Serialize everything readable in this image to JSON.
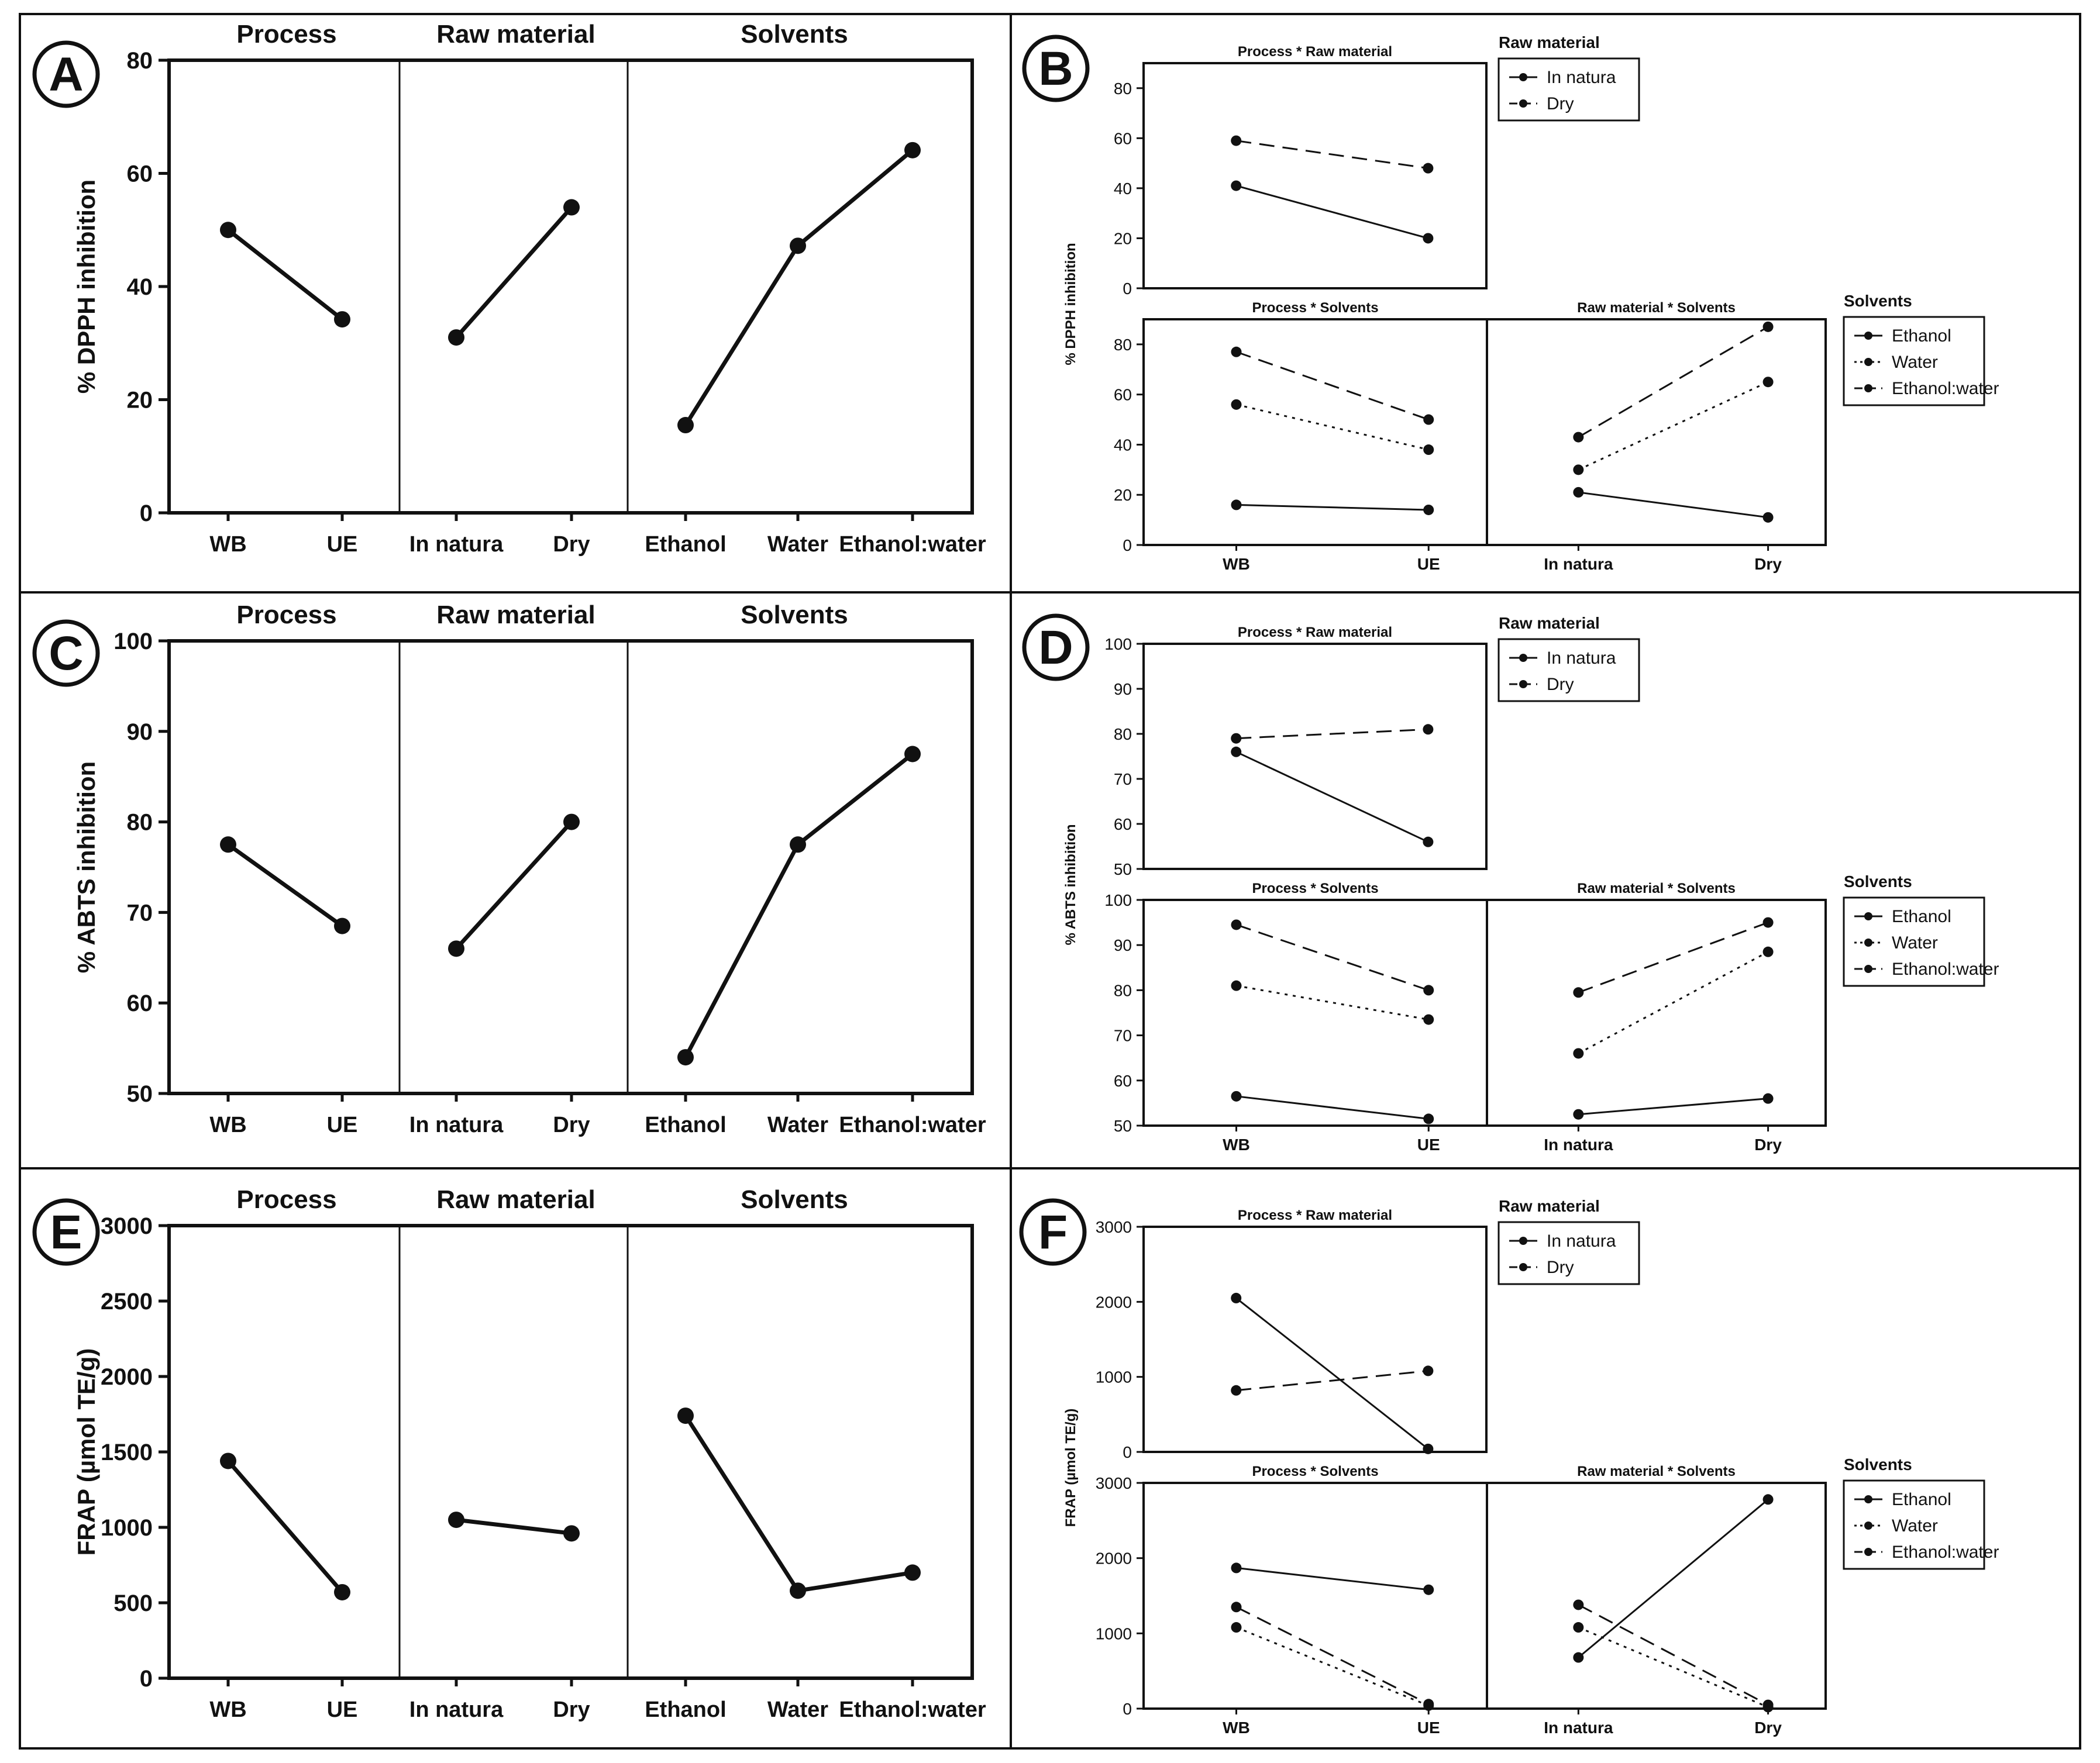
{
  "figure": {
    "panel_letters": [
      "A",
      "B",
      "C",
      "D",
      "E",
      "F"
    ]
  },
  "chart_data": [
    {
      "id": "A",
      "type": "line",
      "ylabel": "% DPPH inhibition",
      "ylim": [
        0,
        80
      ],
      "yticks": [
        "0",
        "20",
        "40",
        "60",
        "80"
      ],
      "sections": [
        {
          "title": "Process",
          "categories": [
            "WB",
            "UE"
          ],
          "values": [
            50,
            34.2
          ]
        },
        {
          "title": "Raw material",
          "categories": [
            "In natura",
            "Dry"
          ],
          "values": [
            31,
            54
          ]
        },
        {
          "title": "Solvents",
          "categories": [
            "Ethanol",
            "Water",
            "Ethanol:water"
          ],
          "values": [
            15.5,
            47.2,
            64.1
          ]
        }
      ]
    },
    {
      "id": "B",
      "type": "line",
      "ylabel": "% DPPH inhibition",
      "subplots": [
        {
          "title": "Process * Raw material",
          "categories": [
            "WB",
            "UE"
          ],
          "ylim": [
            0,
            90
          ],
          "yticks": [
            "0",
            "20",
            "40",
            "60",
            "80"
          ],
          "series": [
            {
              "name": "In natura",
              "style": "solid",
              "values": [
                41,
                20
              ]
            },
            {
              "name": "Dry",
              "style": "dashed",
              "values": [
                59,
                48
              ]
            }
          ]
        },
        {
          "title": "Process * Solvents",
          "categories": [
            "WB",
            "UE"
          ],
          "ylim": [
            0,
            90
          ],
          "yticks": [
            "0",
            "20",
            "40",
            "60",
            "80"
          ],
          "series": [
            {
              "name": "Ethanol",
              "style": "solid",
              "values": [
                16,
                14
              ]
            },
            {
              "name": "Water",
              "style": "dotted",
              "values": [
                56,
                38
              ]
            },
            {
              "name": "Ethanol:water",
              "style": "dashed",
              "values": [
                77,
                50
              ]
            }
          ]
        },
        {
          "title": "Raw material * Solvents",
          "categories": [
            "In natura",
            "Dry"
          ],
          "ylim": [
            0,
            90
          ],
          "yticks": [],
          "series": [
            {
              "name": "Ethanol",
              "style": "solid",
              "values": [
                21,
                11
              ]
            },
            {
              "name": "Water",
              "style": "dotted",
              "values": [
                30,
                65
              ]
            },
            {
              "name": "Ethanol:water",
              "style": "dashed",
              "values": [
                43,
                87
              ]
            }
          ]
        }
      ],
      "legends": [
        {
          "title": "Raw material",
          "entries": [
            {
              "label": "In natura",
              "style": "solid"
            },
            {
              "label": "Dry",
              "style": "dashed"
            }
          ]
        },
        {
          "title": "Solvents",
          "entries": [
            {
              "label": "Ethanol",
              "style": "solid"
            },
            {
              "label": "Water",
              "style": "dotted"
            },
            {
              "label": "Ethanol:water",
              "style": "dashed"
            }
          ]
        }
      ]
    },
    {
      "id": "C",
      "type": "line",
      "ylabel": "% ABTS inhibition",
      "ylim": [
        50,
        100
      ],
      "yticks": [
        "50",
        "60",
        "70",
        "80",
        "90",
        "100"
      ],
      "sections": [
        {
          "title": "Process",
          "categories": [
            "WB",
            "UE"
          ],
          "values": [
            77.5,
            68.5
          ]
        },
        {
          "title": "Raw material",
          "categories": [
            "In natura",
            "Dry"
          ],
          "values": [
            66,
            80
          ]
        },
        {
          "title": "Solvents",
          "categories": [
            "Ethanol",
            "Water",
            "Ethanol:water"
          ],
          "values": [
            54,
            77.5,
            87.5
          ]
        }
      ]
    },
    {
      "id": "D",
      "type": "line",
      "ylabel": "% ABTS inhibition",
      "subplots": [
        {
          "title": "Process * Raw material",
          "categories": [
            "WB",
            "UE"
          ],
          "ylim": [
            50,
            100
          ],
          "yticks": [
            "50",
            "60",
            "70",
            "80",
            "90",
            "100"
          ],
          "series": [
            {
              "name": "In natura",
              "style": "solid",
              "values": [
                76,
                56
              ]
            },
            {
              "name": "Dry",
              "style": "dashed",
              "values": [
                79,
                81
              ]
            }
          ]
        },
        {
          "title": "Process * Solvents",
          "categories": [
            "WB",
            "UE"
          ],
          "ylim": [
            50,
            100
          ],
          "yticks": [
            "50",
            "60",
            "70",
            "80",
            "90",
            "100"
          ],
          "series": [
            {
              "name": "Ethanol",
              "style": "solid",
              "values": [
                56.5,
                51.5
              ]
            },
            {
              "name": "Water",
              "style": "dotted",
              "values": [
                81,
                73.5
              ]
            },
            {
              "name": "Ethanol:water",
              "style": "dashed",
              "values": [
                94.5,
                80
              ]
            }
          ]
        },
        {
          "title": "Raw material * Solvents",
          "categories": [
            "In natura",
            "Dry"
          ],
          "ylim": [
            50,
            100
          ],
          "yticks": [],
          "series": [
            {
              "name": "Ethanol",
              "style": "solid",
              "values": [
                52.5,
                56
              ]
            },
            {
              "name": "Water",
              "style": "dotted",
              "values": [
                66,
                88.5
              ]
            },
            {
              "name": "Ethanol:water",
              "style": "dashed",
              "values": [
                79.5,
                95
              ]
            }
          ]
        }
      ],
      "legends": [
        {
          "title": "Raw material",
          "entries": [
            {
              "label": "In natura",
              "style": "solid"
            },
            {
              "label": "Dry",
              "style": "dashed"
            }
          ]
        },
        {
          "title": "Solvents",
          "entries": [
            {
              "label": "Ethanol",
              "style": "solid"
            },
            {
              "label": "Water",
              "style": "dotted"
            },
            {
              "label": "Ethanol:water",
              "style": "dashed"
            }
          ]
        }
      ]
    },
    {
      "id": "E",
      "type": "line",
      "ylabel": "FRAP (µmol TE/g)",
      "ylim": [
        0,
        3000
      ],
      "yticks": [
        "0",
        "500",
        "1000",
        "1500",
        "2000",
        "2500",
        "3000"
      ],
      "sections": [
        {
          "title": "Process",
          "categories": [
            "WB",
            "UE"
          ],
          "values": [
            1440,
            570
          ]
        },
        {
          "title": "Raw material",
          "categories": [
            "In natura",
            "Dry"
          ],
          "values": [
            1050,
            960
          ]
        },
        {
          "title": "Solvents",
          "categories": [
            "Ethanol",
            "Water",
            "Ethanol:water"
          ],
          "values": [
            1740,
            580,
            700
          ]
        }
      ]
    },
    {
      "id": "F",
      "type": "line",
      "ylabel": "FRAP (µmol TE/g)",
      "subplots": [
        {
          "title": "Process * Raw material",
          "categories": [
            "WB",
            "UE"
          ],
          "ylim": [
            0,
            3000
          ],
          "yticks": [
            "0",
            "1000",
            "2000",
            "3000"
          ],
          "series": [
            {
              "name": "In natura",
              "style": "solid",
              "values": [
                2050,
                40
              ]
            },
            {
              "name": "Dry",
              "style": "dashed",
              "values": [
                820,
                1080
              ]
            }
          ]
        },
        {
          "title": "Process * Solvents",
          "categories": [
            "WB",
            "UE"
          ],
          "ylim": [
            0,
            3000
          ],
          "yticks": [
            "0",
            "1000",
            "2000",
            "3000"
          ],
          "series": [
            {
              "name": "Ethanol",
              "style": "solid",
              "values": [
                1870,
                1580
              ]
            },
            {
              "name": "Water",
              "style": "dotted",
              "values": [
                1080,
                40
              ]
            },
            {
              "name": "Ethanol:water",
              "style": "dashed",
              "values": [
                1350,
                60
              ]
            }
          ]
        },
        {
          "title": "Raw material * Solvents",
          "categories": [
            "In natura",
            "Dry"
          ],
          "ylim": [
            0,
            3000
          ],
          "yticks": [],
          "series": [
            {
              "name": "Ethanol",
              "style": "solid",
              "values": [
                680,
                2780
              ]
            },
            {
              "name": "Water",
              "style": "dotted",
              "values": [
                1080,
                20
              ]
            },
            {
              "name": "Ethanol:water",
              "style": "dashed",
              "values": [
                1380,
                50
              ]
            }
          ]
        }
      ],
      "legends": [
        {
          "title": "Raw material",
          "entries": [
            {
              "label": "In natura",
              "style": "solid"
            },
            {
              "label": "Dry",
              "style": "dashed"
            }
          ]
        },
        {
          "title": "Solvents",
          "entries": [
            {
              "label": "Ethanol",
              "style": "solid"
            },
            {
              "label": "Water",
              "style": "dotted"
            },
            {
              "label": "Ethanol:water",
              "style": "dashed"
            }
          ]
        }
      ]
    }
  ]
}
